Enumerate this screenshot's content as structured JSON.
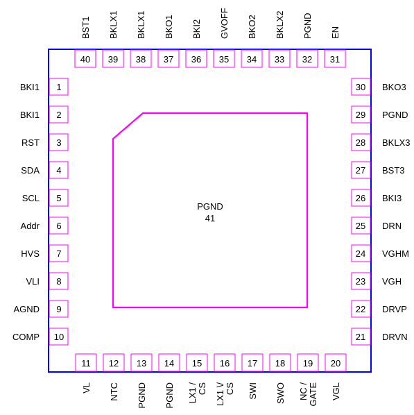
{
  "package": {
    "body_color": "#0000ff",
    "pad_color": "#ff00ff",
    "text_color": "#000000"
  },
  "exposed_pad": {
    "name": "PGND",
    "number": "41"
  },
  "pins": {
    "left": [
      {
        "num": "1",
        "name": "BKI1"
      },
      {
        "num": "2",
        "name": "BKI1"
      },
      {
        "num": "3",
        "name": "RST"
      },
      {
        "num": "4",
        "name": "SDA"
      },
      {
        "num": "5",
        "name": "SCL"
      },
      {
        "num": "6",
        "name": "Addr"
      },
      {
        "num": "7",
        "name": "HVS"
      },
      {
        "num": "8",
        "name": "VLI"
      },
      {
        "num": "9",
        "name": "AGND"
      },
      {
        "num": "10",
        "name": "COMP"
      }
    ],
    "bottom": [
      {
        "num": "11",
        "name": [
          "VL"
        ]
      },
      {
        "num": "12",
        "name": [
          "NTC"
        ]
      },
      {
        "num": "13",
        "name": [
          "PGND"
        ]
      },
      {
        "num": "14",
        "name": [
          "PGND"
        ]
      },
      {
        "num": "15",
        "name": [
          "LX1 /",
          "CS"
        ]
      },
      {
        "num": "16",
        "name": [
          "LX1 \\/",
          "CS"
        ]
      },
      {
        "num": "17",
        "name": [
          "SWI"
        ]
      },
      {
        "num": "18",
        "name": [
          "SWO"
        ]
      },
      {
        "num": "19",
        "name": [
          "NC /",
          "GATE"
        ]
      },
      {
        "num": "20",
        "name": [
          "VGL"
        ]
      }
    ],
    "right": [
      {
        "num": "21",
        "name": "DRVN"
      },
      {
        "num": "22",
        "name": "DRVP"
      },
      {
        "num": "23",
        "name": "VGH"
      },
      {
        "num": "24",
        "name": "VGHM"
      },
      {
        "num": "25",
        "name": "DRN"
      },
      {
        "num": "26",
        "name": "BKI3"
      },
      {
        "num": "27",
        "name": "BST3"
      },
      {
        "num": "28",
        "name": "BKLX3"
      },
      {
        "num": "29",
        "name": "PGND"
      },
      {
        "num": "30",
        "name": "BKO3"
      }
    ],
    "top": [
      {
        "num": "31",
        "name": "EN"
      },
      {
        "num": "32",
        "name": "PGND"
      },
      {
        "num": "33",
        "name": "BKLX2"
      },
      {
        "num": "34",
        "name": "BKO2"
      },
      {
        "num": "35",
        "name": "GVOFF"
      },
      {
        "num": "36",
        "name": "BKI2"
      },
      {
        "num": "37",
        "name": "BKO1"
      },
      {
        "num": "38",
        "name": "BKLX1"
      },
      {
        "num": "39",
        "name": "BKLX1"
      },
      {
        "num": "40",
        "name": "BST1"
      }
    ]
  }
}
